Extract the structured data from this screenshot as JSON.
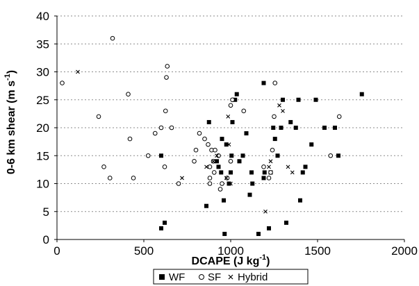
{
  "chart_data": {
    "type": "scatter",
    "title": "",
    "xlabel": "DCAPE (J kg",
    "xlabel_sup": "-1",
    "xlabel_end": ")",
    "ylabel": "0-6 km shear (m s",
    "ylabel_sup": "-1",
    "ylabel_end": ")",
    "xlim": [
      0,
      2000
    ],
    "ylim": [
      0,
      40
    ],
    "xticks": [
      "0",
      "500",
      "1000",
      "1500",
      "2000"
    ],
    "yticks": [
      "0",
      "5",
      "10",
      "15",
      "20",
      "25",
      "30",
      "35",
      "40"
    ],
    "grid": "horizontal dashed",
    "legend_position": "bottom",
    "series": [
      {
        "name": "WF",
        "marker": "filled-square",
        "points": [
          [
            600,
            2
          ],
          [
            620,
            3
          ],
          [
            600,
            15
          ],
          [
            860,
            6
          ],
          [
            875,
            21
          ],
          [
            920,
            14
          ],
          [
            930,
            13
          ],
          [
            945,
            12
          ],
          [
            950,
            18
          ],
          [
            960,
            7
          ],
          [
            965,
            1
          ],
          [
            975,
            17
          ],
          [
            990,
            10
          ],
          [
            1000,
            12
          ],
          [
            1005,
            15
          ],
          [
            1010,
            21
          ],
          [
            1025,
            25
          ],
          [
            1035,
            26
          ],
          [
            1050,
            14
          ],
          [
            1070,
            15
          ],
          [
            1090,
            19
          ],
          [
            1110,
            8
          ],
          [
            1120,
            12
          ],
          [
            1125,
            10
          ],
          [
            1160,
            1
          ],
          [
            1190,
            28
          ],
          [
            1195,
            12
          ],
          [
            1190,
            11
          ],
          [
            1220,
            2
          ],
          [
            1230,
            12
          ],
          [
            1245,
            20
          ],
          [
            1255,
            18
          ],
          [
            1270,
            15
          ],
          [
            1290,
            20
          ],
          [
            1300,
            25
          ],
          [
            1320,
            3
          ],
          [
            1345,
            21
          ],
          [
            1375,
            20
          ],
          [
            1390,
            25
          ],
          [
            1400,
            7
          ],
          [
            1415,
            12
          ],
          [
            1430,
            13
          ],
          [
            1465,
            17
          ],
          [
            1490,
            25
          ],
          [
            1540,
            20
          ],
          [
            1600,
            20
          ],
          [
            1620,
            15
          ],
          [
            1755,
            26
          ]
        ]
      },
      {
        "name": "SF",
        "marker": "open-circle",
        "points": [
          [
            30,
            28
          ],
          [
            240,
            22
          ],
          [
            270,
            13
          ],
          [
            305,
            11
          ],
          [
            320,
            36
          ],
          [
            410,
            26
          ],
          [
            420,
            18
          ],
          [
            440,
            11
          ],
          [
            525,
            15
          ],
          [
            565,
            19
          ],
          [
            600,
            20
          ],
          [
            620,
            13
          ],
          [
            625,
            23
          ],
          [
            630,
            29
          ],
          [
            635,
            31
          ],
          [
            660,
            20
          ],
          [
            700,
            10
          ],
          [
            790,
            14
          ],
          [
            800,
            16
          ],
          [
            820,
            19
          ],
          [
            850,
            18
          ],
          [
            870,
            17
          ],
          [
            880,
            11
          ],
          [
            880,
            10
          ],
          [
            880,
            13
          ],
          [
            890,
            16
          ],
          [
            900,
            14
          ],
          [
            905,
            12
          ],
          [
            910,
            16
          ],
          [
            930,
            15
          ],
          [
            940,
            9
          ],
          [
            950,
            10
          ],
          [
            980,
            11
          ],
          [
            1000,
            14
          ],
          [
            1000,
            24
          ],
          [
            1010,
            25
          ],
          [
            1075,
            23
          ],
          [
            1190,
            13
          ],
          [
            1220,
            11
          ],
          [
            1230,
            12
          ],
          [
            1240,
            16
          ],
          [
            1250,
            22
          ],
          [
            1255,
            28
          ],
          [
            1575,
            15
          ],
          [
            1625,
            22
          ]
        ]
      },
      {
        "name": "Hybrid",
        "marker": "x",
        "points": [
          [
            120,
            30
          ],
          [
            720,
            11
          ],
          [
            860,
            13
          ],
          [
            900,
            14
          ],
          [
            920,
            15
          ],
          [
            975,
            11
          ],
          [
            985,
            22
          ],
          [
            990,
            17
          ],
          [
            1000,
            10
          ],
          [
            1200,
            5
          ],
          [
            1220,
            13
          ],
          [
            1230,
            14
          ],
          [
            1280,
            24
          ],
          [
            1300,
            23
          ],
          [
            1330,
            13
          ],
          [
            1355,
            12
          ]
        ]
      }
    ]
  }
}
